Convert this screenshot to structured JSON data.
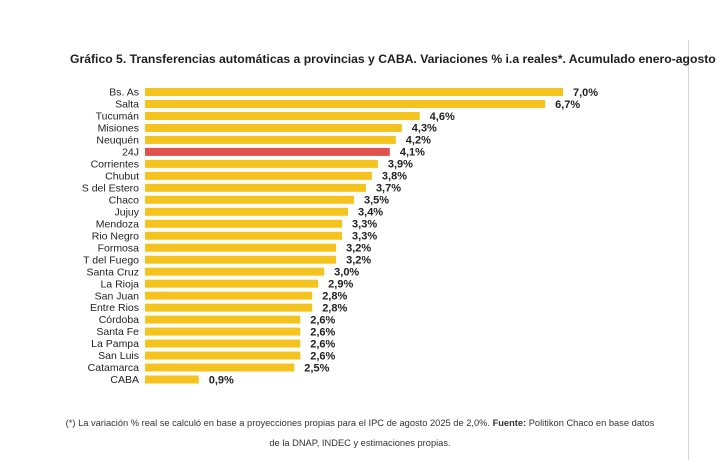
{
  "title": "Gráfico 5. Transferencias automáticas a provincias y CABA. Variaciones % i.a reales*. Acumulado enero-agosto",
  "colors": {
    "bar": "#F5C31D",
    "highlight": "#E0524B"
  },
  "chart_data": {
    "type": "bar",
    "orientation": "horizontal",
    "title": "Gráfico 5. Transferencias automáticas a provincias y CABA. Variaciones % i.a reales*. Acumulado enero-agosto",
    "categories": [
      "Bs. As",
      "Salta",
      "Tucumán",
      "Misiones",
      "Neuquén",
      "24J",
      "Corrientes",
      "Chubut",
      "S del Estero",
      "Chaco",
      "Jujuy",
      "Mendoza",
      "Rio Negro",
      "Formosa",
      "T del Fuego",
      "Santa Cruz",
      "La Rioja",
      "San Juan",
      "Entre Rios",
      "Córdoba",
      "Santa Fe",
      "La Pampa",
      "San Luis",
      "Catamarca",
      "CABA"
    ],
    "values": [
      7.0,
      6.7,
      4.6,
      4.3,
      4.2,
      4.1,
      3.9,
      3.8,
      3.7,
      3.5,
      3.4,
      3.3,
      3.3,
      3.2,
      3.2,
      3.0,
      2.9,
      2.8,
      2.8,
      2.6,
      2.6,
      2.6,
      2.6,
      2.5,
      0.9
    ],
    "value_labels": [
      "7,0%",
      "6,7%",
      "4,6%",
      "4,3%",
      "4,2%",
      "4,1%",
      "3,9%",
      "3,8%",
      "3,7%",
      "3,5%",
      "3,4%",
      "3,3%",
      "3,3%",
      "3,2%",
      "3,2%",
      "3,0%",
      "2,9%",
      "2,8%",
      "2,8%",
      "2,6%",
      "2,6%",
      "2,6%",
      "2,6%",
      "2,5%",
      "0,9%"
    ],
    "highlight": "24J",
    "grid": false,
    "legend": "none"
  },
  "footnote": {
    "text": "(*) La variación % real se calculó en base a proyecciones propias para el IPC de agosto 2025 de 2,0%. ",
    "source_label": "Fuente:",
    "source_text": " Politikon Chaco en base datos de la DNAP, INDEC y estimaciones propias."
  }
}
